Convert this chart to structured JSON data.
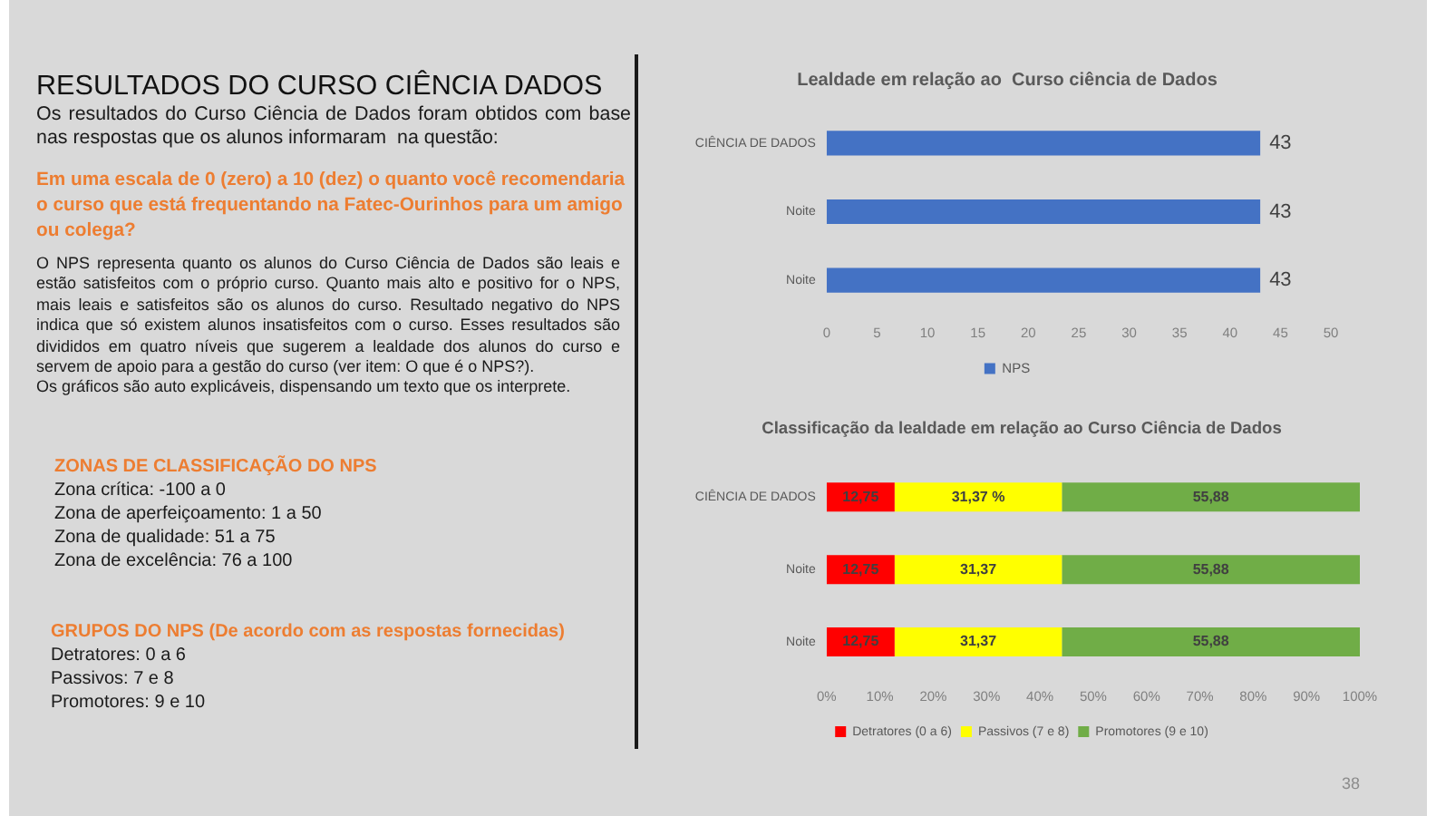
{
  "chart_data": [
    {
      "type": "other",
      "title": "RESULTADOS DO CURSO CIÊNCIA DADOS",
      "subtitle": "Os resultados do Curso Ciência de Dados foram obtidos com base nas respostas que os alunos informaram  na questão:"
    },
    {
      "type": "other",
      "title": "Em uma escala de 0 (zero) a 10 (dez) o quanto você recomendaria o curso que está frequentando na Fatec-Ourinhos para um amigo ou colega?",
      "annotations": [
        "O NPS representa quanto os alunos do Curso Ciência de Dados são leais e estão satisfeitos com o próprio curso. Quanto mais alto e positivo for o NPS, mais leais e satisfeitos são os alunos do curso. Resultado negativo do NPS indica que só existem alunos insatisfeitos com o curso. Esses resultados são divididos em quatro níveis que sugerem a lealdade dos alunos do curso e servem de apoio para a gestão do curso (ver item: O que é o NPS?).",
        "Os gráficos são auto explicáveis, dispensando um texto que os interprete."
      ]
    },
    {
      "type": "other",
      "title": "ZONAS DE CLASSIFICAÇÃO DO NPS",
      "annotations": [
        "Zona crítica: -100 a 0",
        "Zona de aperfeiçoamento: 1 a 50",
        "Zona de qualidade: 51 a 75",
        "Zona de excelência: 76 a 100"
      ]
    },
    {
      "type": "other",
      "title": "GRUPOS DO NPS (De acordo com as respostas fornecidas)",
      "annotations": [
        "Detratores: 0 a 6",
        "Passivos: 7 e 8",
        "Promotores: 9 e 10"
      ]
    },
    {
      "type": "bar",
      "orientation": "horizontal",
      "title": "Lealdade em relação ao  Curso ciência de Dados",
      "categories": [
        "CIÊNCIA DE DADOS",
        "Noite",
        "Noite"
      ],
      "series": [
        {
          "name": "NPS",
          "color": "#4472c4",
          "values": [
            43,
            43,
            43
          ]
        }
      ],
      "xlim": [
        0,
        50
      ],
      "xticks": [
        0,
        5,
        10,
        15,
        20,
        25,
        30,
        35,
        40,
        45,
        50
      ],
      "data_labels": true,
      "legend": "bottom"
    },
    {
      "type": "bar",
      "orientation": "horizontal",
      "stacked": true,
      "title": "Classificação da lealdade em relação ao Curso Ciência de Dados",
      "categories": [
        "CIÊNCIA DE DADOS",
        "Noite",
        "Noite"
      ],
      "series": [
        {
          "name": "Detratores (0 a 6)",
          "color": "#ff0000",
          "values": [
            12.75,
            12.75,
            12.75
          ],
          "value_labels": [
            "12,75",
            "12,75",
            "12,75"
          ]
        },
        {
          "name": "Passivos (7 e 8)",
          "color": "#ffff00",
          "values": [
            31.37,
            31.37,
            31.37
          ],
          "value_labels": [
            "31,37 %",
            "31,37",
            "31,37"
          ]
        },
        {
          "name": "Promotores (9 e 10)",
          "color": "#70ad47",
          "values": [
            55.88,
            55.88,
            55.88
          ],
          "value_labels": [
            "55,88",
            "55,88",
            "55,88"
          ]
        }
      ],
      "xlim": [
        0,
        100
      ],
      "xticks": [
        {
          "value": 0,
          "label": "0%"
        },
        {
          "value": 10,
          "label": "10%"
        },
        {
          "value": 20,
          "label": "20%"
        },
        {
          "value": 30,
          "label": "30%"
        },
        {
          "value": 40,
          "label": "40%"
        },
        {
          "value": 50,
          "label": "50%"
        },
        {
          "value": 60,
          "label": "60%"
        },
        {
          "value": 70,
          "label": "70%"
        },
        {
          "value": 80,
          "label": "80%"
        },
        {
          "value": 90,
          "label": "90%"
        },
        {
          "value": 100,
          "label": "100%"
        }
      ],
      "legend": "bottom",
      "annotations": [
        "38"
      ]
    }
  ]
}
